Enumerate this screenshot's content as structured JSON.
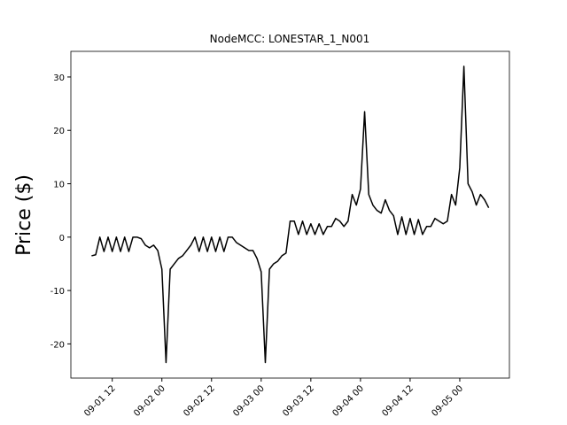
{
  "chart_data": {
    "type": "line",
    "title": "NodeMCC: LONESTAR_1_N001",
    "y_label": "Price ($)",
    "x": [
      "09-01 07",
      "09-01 08",
      "09-01 09",
      "09-01 10",
      "09-01 11",
      "09-01 12",
      "09-01 13",
      "09-01 14",
      "09-01 15",
      "09-01 16",
      "09-01 17",
      "09-01 18",
      "09-01 19",
      "09-01 20",
      "09-01 21",
      "09-01 22",
      "09-01 23",
      "09-02 00",
      "09-02 01",
      "09-02 02",
      "09-02 03",
      "09-02 04",
      "09-02 05",
      "09-02 06",
      "09-02 07",
      "09-02 08",
      "09-02 09",
      "09-02 10",
      "09-02 11",
      "09-02 12",
      "09-02 13",
      "09-02 14",
      "09-02 15",
      "09-02 16",
      "09-02 17",
      "09-02 18",
      "09-02 19",
      "09-02 20",
      "09-02 21",
      "09-02 22",
      "09-02 23",
      "09-03 00",
      "09-03 01",
      "09-03 02",
      "09-03 03",
      "09-03 04",
      "09-03 05",
      "09-03 06",
      "09-03 07",
      "09-03 08",
      "09-03 09",
      "09-03 10",
      "09-03 11",
      "09-03 12",
      "09-03 13",
      "09-03 14",
      "09-03 15",
      "09-03 16",
      "09-03 17",
      "09-03 18",
      "09-03 19",
      "09-03 20",
      "09-03 21",
      "09-03 22",
      "09-03 23",
      "09-04 00",
      "09-04 01",
      "09-04 02",
      "09-04 03",
      "09-04 04",
      "09-04 05",
      "09-04 06",
      "09-04 07",
      "09-04 08",
      "09-04 09",
      "09-04 10",
      "09-04 11",
      "09-04 12",
      "09-04 13",
      "09-04 14",
      "09-04 15",
      "09-04 16",
      "09-04 17",
      "09-04 18",
      "09-04 19",
      "09-04 20",
      "09-04 21",
      "09-04 22",
      "09-04 23",
      "09-05 00",
      "09-05 01",
      "09-05 02",
      "09-05 03",
      "09-05 04",
      "09-05 05",
      "09-05 06",
      "09-05 07"
    ],
    "series": [
      {
        "name": "NodeMCC",
        "color": "#000000",
        "values": [
          -3.5,
          -3.3,
          0,
          -2.7,
          0,
          -2.7,
          0,
          -2.7,
          0,
          -2.7,
          0,
          0,
          -0.3,
          -1.5,
          -2,
          -1.5,
          -2.5,
          -6,
          -23.5,
          -6,
          -5,
          -4,
          -3.5,
          -2.5,
          -1.5,
          0,
          -2.7,
          0,
          -2.7,
          0,
          -2.7,
          0,
          -2.7,
          0,
          0,
          -1,
          -1.5,
          -2,
          -2.5,
          -2.5,
          -4,
          -6.5,
          -23.5,
          -6,
          -5,
          -4.5,
          -3.5,
          -3,
          3,
          3,
          0.5,
          3,
          0.5,
          2.5,
          0.5,
          2.5,
          0.5,
          2,
          2,
          3.5,
          3,
          2,
          3,
          8,
          6,
          9,
          23.5,
          8,
          6,
          5,
          4.5,
          7,
          5,
          4,
          0.5,
          3.8,
          0.5,
          3.5,
          0.5,
          3.3,
          0.5,
          2,
          2,
          3.5,
          3,
          2.5,
          3,
          8,
          6,
          13,
          32,
          10,
          8.5,
          6,
          8,
          7,
          5.5
        ]
      }
    ],
    "xlim": [
      "09-01 02",
      "09-05 12"
    ],
    "xticks": [
      "09-01 12",
      "09-02 00",
      "09-02 12",
      "09-03 00",
      "09-03 12",
      "09-04 00",
      "09-04 12",
      "09-05 00"
    ],
    "ylim": [
      -26.4,
      34.8
    ],
    "yticks": [
      -20,
      -10,
      0,
      10,
      20,
      30
    ]
  }
}
